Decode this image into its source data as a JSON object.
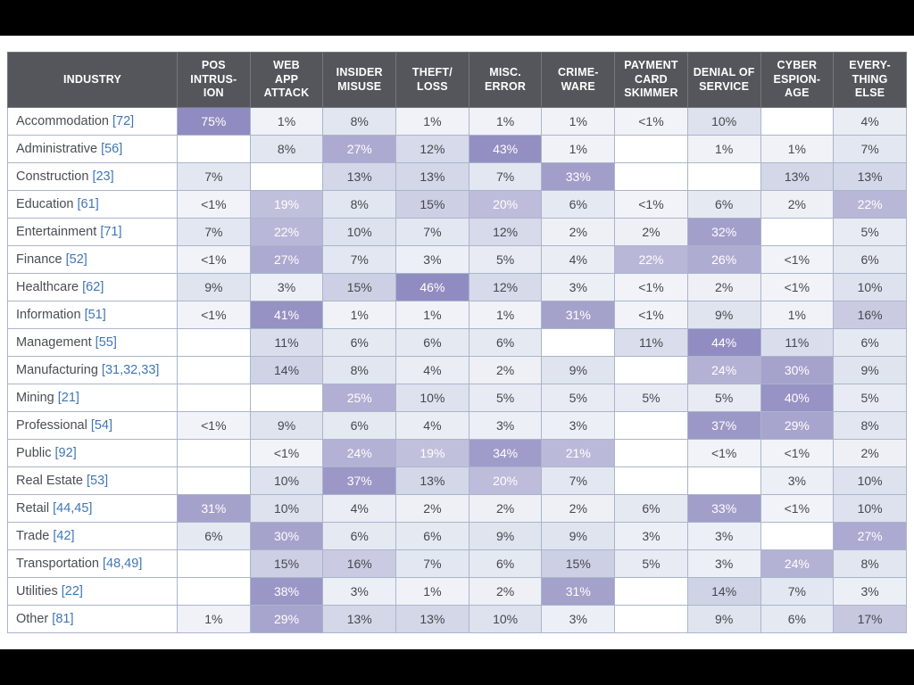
{
  "colors": {
    "header_bg": "#54565b",
    "header_text": "#ffffff",
    "link_blue": "#3f76b6",
    "grid_border": "#aab5cb",
    "heat_max": "#908cc1",
    "heat_stops": [
      [
        0,
        "#f2f4f8"
      ],
      [
        10,
        "#dde2ee"
      ],
      [
        20,
        "#bdbcda"
      ],
      [
        30,
        "#a5a2cc"
      ],
      [
        45,
        "#908cc1"
      ]
    ],
    "white_text_threshold": 19
  },
  "table": {
    "headers": [
      "INDUSTRY",
      "POS\nINTRUS-\nION",
      "WEB\nAPP\nATTACK",
      "INSIDER\nMISUSE",
      "THEFT/\nLOSS",
      "MISC.\nERROR",
      "CRIME-\nWARE",
      "PAYMENT\nCARD\nSKIMMER",
      "DENIAL OF\nSERVICE",
      "CYBER\nESPION-\nAGE",
      "EVERY-\nTHING\nELSE"
    ],
    "rows": [
      {
        "industry": "Accommodation",
        "code": "[72]",
        "cells": [
          "75%",
          "1%",
          "8%",
          "1%",
          "1%",
          "1%",
          "<1%",
          "10%",
          "",
          "4%"
        ]
      },
      {
        "industry": "Administrative",
        "code": "[56]",
        "cells": [
          "",
          "8%",
          "27%",
          "12%",
          "43%",
          "1%",
          "",
          "1%",
          "1%",
          "7%"
        ]
      },
      {
        "industry": "Construction",
        "code": "[23]",
        "cells": [
          "7%",
          "",
          "13%",
          "13%",
          "7%",
          "33%",
          "",
          "",
          "13%",
          "13%"
        ]
      },
      {
        "industry": "Education",
        "code": "[61]",
        "cells": [
          "<1%",
          "19%",
          "8%",
          "15%",
          "20%",
          "6%",
          "<1%",
          "6%",
          "2%",
          "22%"
        ]
      },
      {
        "industry": "Entertainment",
        "code": "[71]",
        "cells": [
          "7%",
          "22%",
          "10%",
          "7%",
          "12%",
          "2%",
          "2%",
          "32%",
          "",
          "5%"
        ]
      },
      {
        "industry": "Finance",
        "code": "[52]",
        "cells": [
          "<1%",
          "27%",
          "7%",
          "3%",
          "5%",
          "4%",
          "22%",
          "26%",
          "<1%",
          "6%"
        ]
      },
      {
        "industry": "Healthcare",
        "code": "[62]",
        "cells": [
          "9%",
          "3%",
          "15%",
          "46%",
          "12%",
          "3%",
          "<1%",
          "2%",
          "<1%",
          "10%"
        ]
      },
      {
        "industry": "Information",
        "code": "[51]",
        "cells": [
          "<1%",
          "41%",
          "1%",
          "1%",
          "1%",
          "31%",
          "<1%",
          "9%",
          "1%",
          "16%"
        ]
      },
      {
        "industry": "Management",
        "code": "[55]",
        "cells": [
          "",
          "11%",
          "6%",
          "6%",
          "6%",
          "",
          "11%",
          "44%",
          "11%",
          "6%"
        ]
      },
      {
        "industry": "Manufacturing",
        "code": "[31,32,33]",
        "cells": [
          "",
          "14%",
          "8%",
          "4%",
          "2%",
          "9%",
          "",
          "24%",
          "30%",
          "9%"
        ]
      },
      {
        "industry": "Mining",
        "code": "[21]",
        "cells": [
          "",
          "",
          "25%",
          "10%",
          "5%",
          "5%",
          "5%",
          "5%",
          "40%",
          "5%"
        ]
      },
      {
        "industry": "Professional",
        "code": "[54]",
        "cells": [
          "<1%",
          "9%",
          "6%",
          "4%",
          "3%",
          "3%",
          "",
          "37%",
          "29%",
          "8%"
        ]
      },
      {
        "industry": "Public",
        "code": "[92]",
        "cells": [
          "",
          "<1%",
          "24%",
          "19%",
          "34%",
          "21%",
          "",
          "<1%",
          "<1%",
          "2%"
        ]
      },
      {
        "industry": "Real Estate",
        "code": "[53]",
        "cells": [
          "",
          "10%",
          "37%",
          "13%",
          "20%",
          "7%",
          "",
          "",
          "3%",
          "10%"
        ]
      },
      {
        "industry": "Retail",
        "code": "[44,45]",
        "cells": [
          "31%",
          "10%",
          "4%",
          "2%",
          "2%",
          "2%",
          "6%",
          "33%",
          "<1%",
          "10%"
        ]
      },
      {
        "industry": "Trade",
        "code": "[42]",
        "cells": [
          "6%",
          "30%",
          "6%",
          "6%",
          "9%",
          "9%",
          "3%",
          "3%",
          "",
          "27%"
        ]
      },
      {
        "industry": "Transportation",
        "code": "[48,49]",
        "cells": [
          "",
          "15%",
          "16%",
          "7%",
          "6%",
          "15%",
          "5%",
          "3%",
          "24%",
          "8%"
        ]
      },
      {
        "industry": "Utilities",
        "code": "[22]",
        "cells": [
          "",
          "38%",
          "3%",
          "1%",
          "2%",
          "31%",
          "",
          "14%",
          "7%",
          "3%"
        ]
      },
      {
        "industry": "Other",
        "code": "[81]",
        "cells": [
          "1%",
          "29%",
          "13%",
          "13%",
          "10%",
          "3%",
          "",
          "9%",
          "6%",
          "17%"
        ]
      }
    ]
  },
  "chart_data": {
    "type": "heatmap",
    "x_categories": [
      "POS INTRUSION",
      "WEB APP ATTACK",
      "INSIDER MISUSE",
      "THEFT/LOSS",
      "MISC. ERROR",
      "CRIMEWARE",
      "PAYMENT CARD SKIMMER",
      "DENIAL OF SERVICE",
      "CYBER ESPIONAGE",
      "EVERYTHING ELSE"
    ],
    "y_categories": [
      "Accommodation [72]",
      "Administrative [56]",
      "Construction [23]",
      "Education [61]",
      "Entertainment [71]",
      "Finance [52]",
      "Healthcare [62]",
      "Information [51]",
      "Management [55]",
      "Manufacturing [31,32,33]",
      "Mining [21]",
      "Professional [54]",
      "Public [92]",
      "Real Estate [53]",
      "Retail [44,45]",
      "Trade [42]",
      "Transportation [48,49]",
      "Utilities [22]",
      "Other [81]"
    ],
    "value_unit": "%",
    "encoding": "numbers are percentages; 0.5 represents '<1%'; null represents an empty cell",
    "values": [
      [
        75,
        1,
        8,
        1,
        1,
        1,
        0.5,
        10,
        null,
        4
      ],
      [
        null,
        8,
        27,
        12,
        43,
        1,
        null,
        1,
        1,
        7
      ],
      [
        7,
        null,
        13,
        13,
        7,
        33,
        null,
        null,
        13,
        13
      ],
      [
        0.5,
        19,
        8,
        15,
        20,
        6,
        0.5,
        6,
        2,
        22
      ],
      [
        7,
        22,
        10,
        7,
        12,
        2,
        2,
        32,
        null,
        5
      ],
      [
        0.5,
        27,
        7,
        3,
        5,
        4,
        22,
        26,
        0.5,
        6
      ],
      [
        9,
        3,
        15,
        46,
        12,
        3,
        0.5,
        2,
        0.5,
        10
      ],
      [
        0.5,
        41,
        1,
        1,
        1,
        31,
        0.5,
        9,
        1,
        16
      ],
      [
        null,
        11,
        6,
        6,
        6,
        null,
        11,
        44,
        11,
        6
      ],
      [
        null,
        14,
        8,
        4,
        2,
        9,
        null,
        24,
        30,
        9
      ],
      [
        null,
        null,
        25,
        10,
        5,
        5,
        5,
        5,
        40,
        5
      ],
      [
        0.5,
        9,
        6,
        4,
        3,
        3,
        null,
        37,
        29,
        8
      ],
      [
        null,
        0.5,
        24,
        19,
        34,
        21,
        null,
        0.5,
        0.5,
        2
      ],
      [
        null,
        10,
        37,
        13,
        20,
        7,
        null,
        null,
        3,
        10
      ],
      [
        31,
        10,
        4,
        2,
        2,
        2,
        6,
        33,
        0.5,
        10
      ],
      [
        6,
        30,
        6,
        6,
        9,
        9,
        3,
        3,
        null,
        27
      ],
      [
        null,
        15,
        16,
        7,
        6,
        15,
        5,
        3,
        24,
        8
      ],
      [
        null,
        38,
        3,
        1,
        2,
        31,
        null,
        14,
        7,
        3
      ],
      [
        1,
        29,
        13,
        13,
        10,
        3,
        null,
        9,
        6,
        17
      ]
    ]
  }
}
